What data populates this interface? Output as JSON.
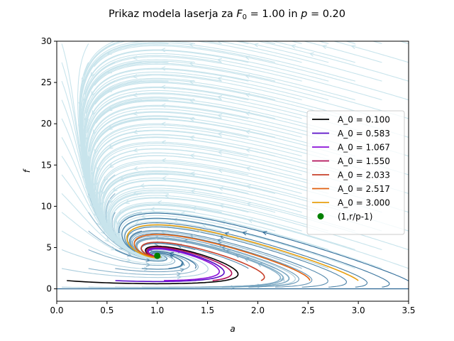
{
  "chart_data": {
    "type": "line",
    "title_prefix": "Prikaz modela laserja za ",
    "title_F": "F",
    "title_F_sub": "0",
    "title_eq1": " = 1.00 in ",
    "title_p": "p",
    "title_eq2": " = 0.20",
    "xlabel": "a",
    "ylabel": "f",
    "xlim": [
      0,
      3.5
    ],
    "ylim": [
      -1.5,
      30
    ],
    "xticks": [
      "0.0",
      "0.5",
      "1.0",
      "1.5",
      "2.0",
      "2.5",
      "3.0",
      "3.5"
    ],
    "yticks": [
      "0",
      "5",
      "10",
      "15",
      "20",
      "25",
      "30"
    ],
    "xtick_values": [
      0,
      0.5,
      1.0,
      1.5,
      2.0,
      2.5,
      3.0,
      3.5
    ],
    "ytick_values": [
      0,
      5,
      10,
      15,
      20,
      25,
      30
    ],
    "grid": false,
    "legend_position": "center-right",
    "series": [
      {
        "name": "A_0 = 0.100",
        "color": "#000000",
        "x": [
          0.1,
          0.5,
          1.0,
          1.5,
          1.75
        ],
        "y": [
          1.0,
          0.35,
          0.2,
          0.1,
          0.05
        ]
      },
      {
        "name": "A_0 = 0.583",
        "color": "#5a0fc8",
        "x": [
          0.583
        ],
        "y": [
          1.0
        ]
      },
      {
        "name": "A_0 = 1.067",
        "color": "#8b0fd8",
        "x": [
          1.067
        ],
        "y": [
          1.0
        ]
      },
      {
        "name": "A_0 = 1.550",
        "color": "#b3125a",
        "x": [
          1.55
        ],
        "y": [
          1.0
        ]
      },
      {
        "name": "A_0 = 2.033",
        "color": "#c8402a",
        "x": [
          2.033
        ],
        "y": [
          1.0
        ]
      },
      {
        "name": "A_0 = 2.517",
        "color": "#e06010",
        "x": [
          2.517
        ],
        "y": [
          1.0
        ]
      },
      {
        "name": "A_0 = 3.000",
        "color": "#e8a010",
        "x": [
          3.0
        ],
        "y": [
          1.0
        ]
      }
    ],
    "fixed_point": {
      "name": "(1,r/p-1)",
      "color": "#008000",
      "x": 1.0,
      "y": 4.0
    }
  }
}
